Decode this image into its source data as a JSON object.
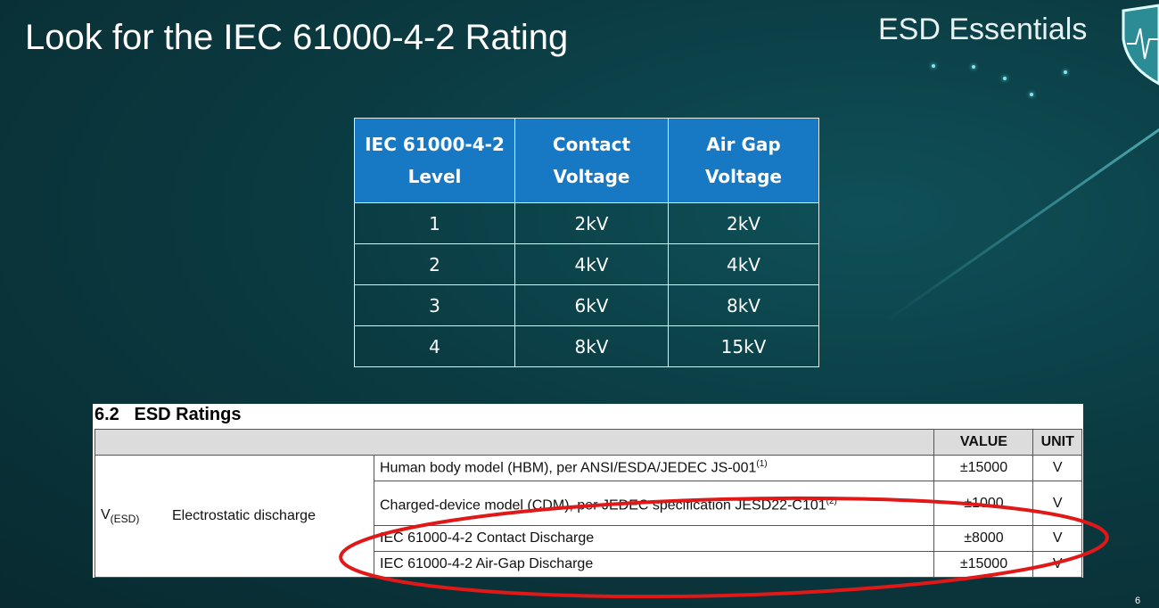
{
  "slide": {
    "title": "Look for the IEC 61000-4-2 Rating",
    "brand": "ESD Essentials",
    "page_number": "6",
    "logo_icon": "shield-heartbeat-icon"
  },
  "iec_table": {
    "headers": [
      [
        "IEC 61000-4-2",
        "Level"
      ],
      [
        "Contact",
        "Voltage"
      ],
      [
        "Air Gap",
        "Voltage"
      ]
    ],
    "rows": [
      [
        "1",
        "2kV",
        "2kV"
      ],
      [
        "2",
        "4kV",
        "4kV"
      ],
      [
        "3",
        "6kV",
        "8kV"
      ],
      [
        "4",
        "8kV",
        "15kV"
      ]
    ],
    "header_color": "#1778c4"
  },
  "esd_ratings": {
    "section_title": "6.2   ESD Ratings",
    "col_value": "VALUE",
    "col_unit": "UNIT",
    "symbol": "V",
    "symbol_sub": "(ESD)",
    "parameter": "Electrostatic discharge",
    "rows": [
      {
        "desc": "Human body model (HBM), per ANSI/ESDA/JEDEC JS-001",
        "note": "(1)",
        "value": "±15000",
        "unit": "V"
      },
      {
        "desc": "Charged-device model (CDM), per JEDEC specification JESD22-C101",
        "note": "(2)",
        "value": "±1000",
        "unit": "V"
      },
      {
        "desc": "IEC 61000-4-2 Contact Discharge",
        "note": "",
        "value": "±8000",
        "unit": "V"
      },
      {
        "desc": "IEC 61000-4-2 Air-Gap Discharge",
        "note": "",
        "value": "±15000",
        "unit": "V"
      }
    ],
    "highlight_color": "#e01818"
  }
}
